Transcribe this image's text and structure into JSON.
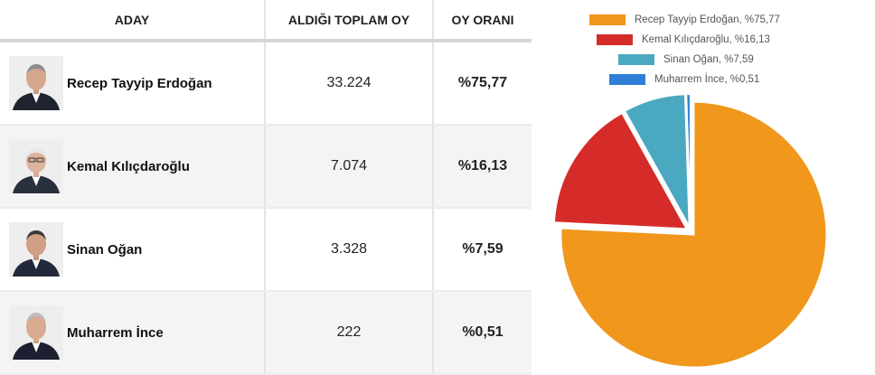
{
  "table": {
    "headers": [
      "ADAY",
      "ALDIĞI TOPLAM OY",
      "OY ORANI"
    ],
    "rows": [
      {
        "name": "Recep Tayyip Erdoğan",
        "votes": "33.224",
        "rate": "%75,77"
      },
      {
        "name": "Kemal Kılıçdaroğlu",
        "votes": "7.074",
        "rate": "%16,13"
      },
      {
        "name": "Sinan Oğan",
        "votes": "3.328",
        "rate": "%7,59"
      },
      {
        "name": "Muharrem İnce",
        "votes": "222",
        "rate": "%0,51"
      }
    ]
  },
  "chart_data": {
    "type": "pie",
    "title": "",
    "legend_position": "top",
    "labels": [
      "Recep Tayyip Erdoğan, %75,77",
      "Kemal Kılıçdaroğlu, %16,13",
      "Sinan Oğan, %7,59",
      "Muharrem İnce, %0,51"
    ],
    "values": [
      75.77,
      16.13,
      7.59,
      0.51
    ],
    "colors": [
      "#f0971c",
      "#d52c2a",
      "#4aa9c0",
      "#2f7fd6"
    ]
  }
}
